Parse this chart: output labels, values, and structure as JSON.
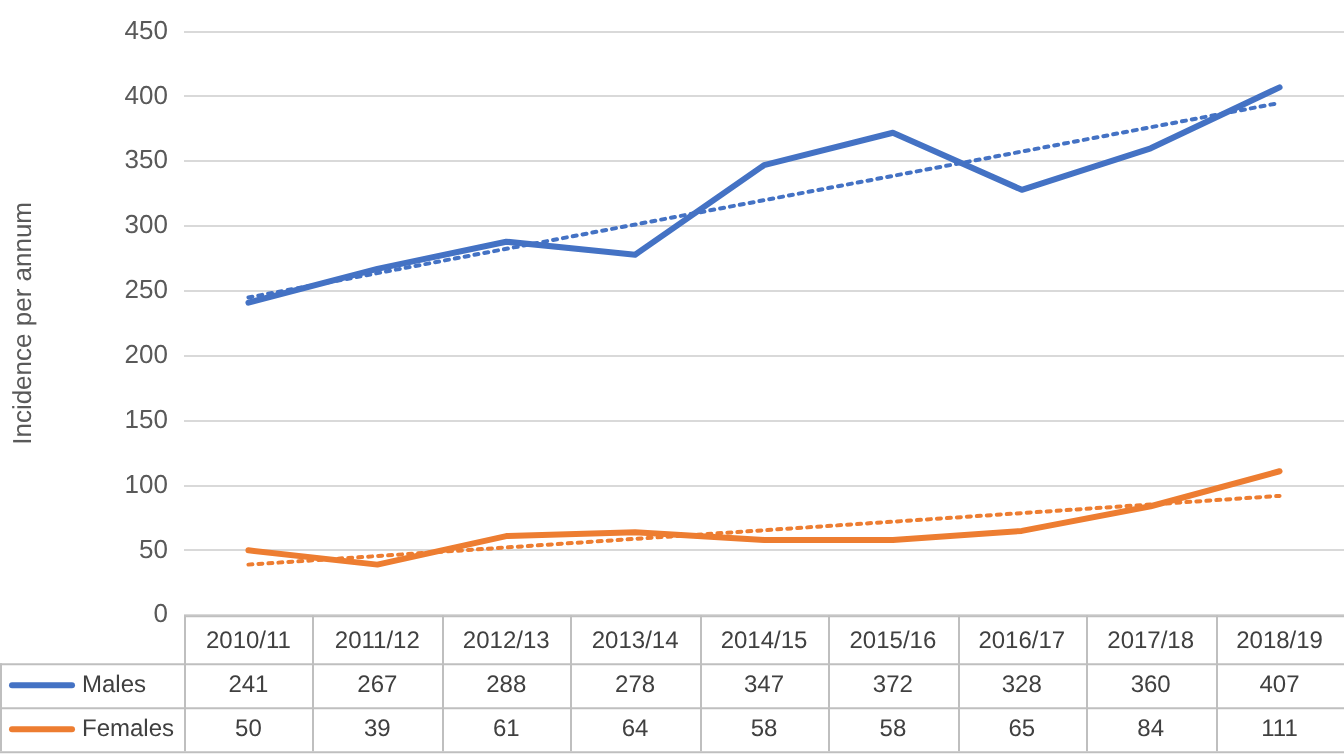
{
  "chart_data": {
    "type": "line",
    "ylabel": "Incidence per annum",
    "categories": [
      "2010/11",
      "2011/12",
      "2012/13",
      "2013/14",
      "2014/15",
      "2015/16",
      "2016/17",
      "2017/18",
      "2018/19"
    ],
    "series": [
      {
        "name": "Males",
        "color": "#4472c4",
        "values": [
          241,
          267,
          288,
          278,
          347,
          372,
          328,
          360,
          407
        ],
        "value_labels": [
          "241",
          "267",
          "288",
          "278",
          "347",
          "372",
          "328",
          "360",
          "407"
        ]
      },
      {
        "name": "Females",
        "color": "#ed7d31",
        "values": [
          50,
          39,
          61,
          64,
          58,
          58,
          65,
          84,
          111
        ],
        "value_labels": [
          "50",
          "39",
          "61",
          "64",
          "58",
          "58",
          "65",
          "84",
          "111"
        ]
      },
      {
        "type": "line",
        "color": "#4472c4",
        "line_style": "dotted",
        "x": [
          "2010/11",
          "2018/19"
        ],
        "values": [
          245,
          395
        ]
      },
      {
        "type": "line",
        "color": "#ed7d31",
        "line_style": "dotted",
        "x": [
          "2010/11",
          "2018/19"
        ],
        "values": [
          39,
          92
        ]
      }
    ],
    "ylim": [
      0,
      450
    ],
    "yticks": [
      0,
      50,
      100,
      150,
      200,
      250,
      300,
      350,
      400,
      450
    ],
    "grid": "y",
    "legend": "bottom",
    "marker": "none",
    "line_style": "solid"
  }
}
